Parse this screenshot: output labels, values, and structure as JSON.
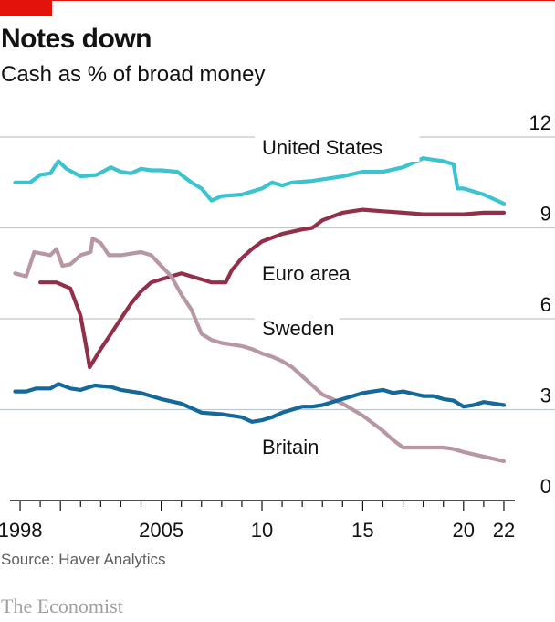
{
  "header": {
    "title": "Notes down",
    "subtitle": "Cash as % of broad money"
  },
  "footer": {
    "source": "Source: Haver Analytics",
    "brand": "The Economist"
  },
  "colors": {
    "accent": "#e3120b",
    "united_states": "#3cc3d0",
    "euro_area": "#92304a",
    "sweden": "#b797a3",
    "britain": "#14689a",
    "grid": "#bfc8cc",
    "axis": "#121212"
  },
  "chart_data": {
    "type": "line",
    "title": "Notes down",
    "subtitle": "Cash as % of broad money",
    "xlim": [
      1998,
      2022.5
    ],
    "ylim": [
      0,
      12
    ],
    "y_ticks": [
      0,
      3,
      6,
      9,
      12
    ],
    "x_tick_labels": [
      {
        "x": 1998,
        "label": "1998"
      },
      {
        "x": 2005,
        "label": "2005"
      },
      {
        "x": 2010,
        "label": "10"
      },
      {
        "x": 2015,
        "label": "15"
      },
      {
        "x": 2020,
        "label": "20"
      },
      {
        "x": 2022,
        "label": "22"
      }
    ],
    "grid": true,
    "y_axis_side": "right",
    "legend": "inline labels",
    "series": [
      {
        "name": "United States",
        "color": "#3cc3d0",
        "points": [
          [
            1997.75,
            10.5
          ],
          [
            1998.5,
            10.5
          ],
          [
            1999,
            10.75
          ],
          [
            1999.5,
            10.8
          ],
          [
            1999.9,
            11.2
          ],
          [
            2000.3,
            10.95
          ],
          [
            2001,
            10.7
          ],
          [
            2001.8,
            10.75
          ],
          [
            2002.5,
            11.0
          ],
          [
            2003,
            10.85
          ],
          [
            2003.5,
            10.8
          ],
          [
            2004,
            10.95
          ],
          [
            2004.5,
            10.9
          ],
          [
            2005,
            10.9
          ],
          [
            2005.8,
            10.85
          ],
          [
            2006.5,
            10.5
          ],
          [
            2007,
            10.3
          ],
          [
            2007.5,
            9.9
          ],
          [
            2008,
            10.05
          ],
          [
            2009,
            10.1
          ],
          [
            2009.5,
            10.2
          ],
          [
            2010,
            10.3
          ],
          [
            2010.5,
            10.5
          ],
          [
            2011,
            10.4
          ],
          [
            2011.5,
            10.5
          ],
          [
            2012.5,
            10.55
          ],
          [
            2013,
            10.6
          ],
          [
            2014,
            10.7
          ],
          [
            2015,
            10.85
          ],
          [
            2016,
            10.85
          ],
          [
            2017,
            11.0
          ],
          [
            2018,
            11.3
          ],
          [
            2018.5,
            11.25
          ],
          [
            2019,
            11.2
          ],
          [
            2019.5,
            11.1
          ],
          [
            2019.7,
            10.3
          ],
          [
            2020,
            10.3
          ],
          [
            2021,
            10.1
          ],
          [
            2022,
            9.8
          ]
        ]
      },
      {
        "name": "Euro area",
        "color": "#92304a",
        "points": [
          [
            1999,
            7.2
          ],
          [
            1999.8,
            7.2
          ],
          [
            2000.5,
            7.0
          ],
          [
            2001,
            6.1
          ],
          [
            2001.3,
            5.0
          ],
          [
            2001.45,
            4.4
          ],
          [
            2002,
            5.0
          ],
          [
            2002.5,
            5.5
          ],
          [
            2003,
            6.0
          ],
          [
            2003.5,
            6.5
          ],
          [
            2004,
            6.9
          ],
          [
            2004.5,
            7.2
          ],
          [
            2005,
            7.3
          ],
          [
            2006,
            7.5
          ],
          [
            2006.5,
            7.4
          ],
          [
            2007,
            7.3
          ],
          [
            2007.5,
            7.2
          ],
          [
            2008.2,
            7.2
          ],
          [
            2008.5,
            7.6
          ],
          [
            2009,
            8.0
          ],
          [
            2009.5,
            8.3
          ],
          [
            2010,
            8.55
          ],
          [
            2011,
            8.8
          ],
          [
            2012,
            8.95
          ],
          [
            2012.5,
            9.0
          ],
          [
            2013,
            9.25
          ],
          [
            2014,
            9.5
          ],
          [
            2015,
            9.6
          ],
          [
            2016,
            9.55
          ],
          [
            2017,
            9.5
          ],
          [
            2018,
            9.45
          ],
          [
            2019,
            9.45
          ],
          [
            2020,
            9.45
          ],
          [
            2021,
            9.5
          ],
          [
            2022,
            9.5
          ]
        ]
      },
      {
        "name": "Sweden",
        "color": "#b797a3",
        "points": [
          [
            1997.75,
            7.5
          ],
          [
            1998.3,
            7.4
          ],
          [
            1998.7,
            8.2
          ],
          [
            1999.5,
            8.1
          ],
          [
            1999.8,
            8.3
          ],
          [
            2000.1,
            7.75
          ],
          [
            2000.5,
            7.8
          ],
          [
            2001,
            8.1
          ],
          [
            2001.5,
            8.2
          ],
          [
            2001.6,
            8.65
          ],
          [
            2002,
            8.5
          ],
          [
            2002.4,
            8.1
          ],
          [
            2003,
            8.1
          ],
          [
            2003.5,
            8.15
          ],
          [
            2004,
            8.2
          ],
          [
            2004.5,
            8.1
          ],
          [
            2005,
            7.75
          ],
          [
            2005.5,
            7.4
          ],
          [
            2006,
            6.8
          ],
          [
            2006.5,
            6.3
          ],
          [
            2007,
            5.5
          ],
          [
            2007.5,
            5.3
          ],
          [
            2008,
            5.2
          ],
          [
            2009,
            5.1
          ],
          [
            2009.5,
            5.0
          ],
          [
            2010,
            4.85
          ],
          [
            2010.5,
            4.75
          ],
          [
            2011,
            4.6
          ],
          [
            2011.5,
            4.4
          ],
          [
            2012,
            4.1
          ],
          [
            2012.5,
            3.8
          ],
          [
            2013,
            3.5
          ],
          [
            2014,
            3.2
          ],
          [
            2015,
            2.8
          ],
          [
            2016,
            2.3
          ],
          [
            2016.5,
            2.0
          ],
          [
            2017,
            1.75
          ],
          [
            2017.5,
            1.75
          ],
          [
            2018,
            1.75
          ],
          [
            2019,
            1.75
          ],
          [
            2019.5,
            1.7
          ],
          [
            2020,
            1.6
          ],
          [
            2021,
            1.45
          ],
          [
            2022,
            1.3
          ]
        ]
      },
      {
        "name": "Britain",
        "color": "#14689a",
        "points": [
          [
            1997.75,
            3.6
          ],
          [
            1998.3,
            3.6
          ],
          [
            1998.8,
            3.7
          ],
          [
            1999.5,
            3.7
          ],
          [
            1999.9,
            3.85
          ],
          [
            2000.5,
            3.7
          ],
          [
            2001,
            3.65
          ],
          [
            2001.7,
            3.8
          ],
          [
            2002.5,
            3.75
          ],
          [
            2003,
            3.65
          ],
          [
            2004,
            3.55
          ],
          [
            2004.5,
            3.45
          ],
          [
            2005,
            3.35
          ],
          [
            2006,
            3.2
          ],
          [
            2007,
            2.9
          ],
          [
            2008,
            2.85
          ],
          [
            2009,
            2.75
          ],
          [
            2009.5,
            2.6
          ],
          [
            2010,
            2.65
          ],
          [
            2010.5,
            2.75
          ],
          [
            2011,
            2.9
          ],
          [
            2011.5,
            3.0
          ],
          [
            2012,
            3.1
          ],
          [
            2012.5,
            3.1
          ],
          [
            2013,
            3.15
          ],
          [
            2014,
            3.35
          ],
          [
            2014.5,
            3.45
          ],
          [
            2015,
            3.55
          ],
          [
            2016,
            3.65
          ],
          [
            2016.5,
            3.55
          ],
          [
            2017,
            3.6
          ],
          [
            2018,
            3.45
          ],
          [
            2018.5,
            3.45
          ],
          [
            2019,
            3.35
          ],
          [
            2019.5,
            3.3
          ],
          [
            2020,
            3.1
          ],
          [
            2020.5,
            3.15
          ],
          [
            2021,
            3.25
          ],
          [
            2022,
            3.15
          ]
        ]
      }
    ]
  }
}
